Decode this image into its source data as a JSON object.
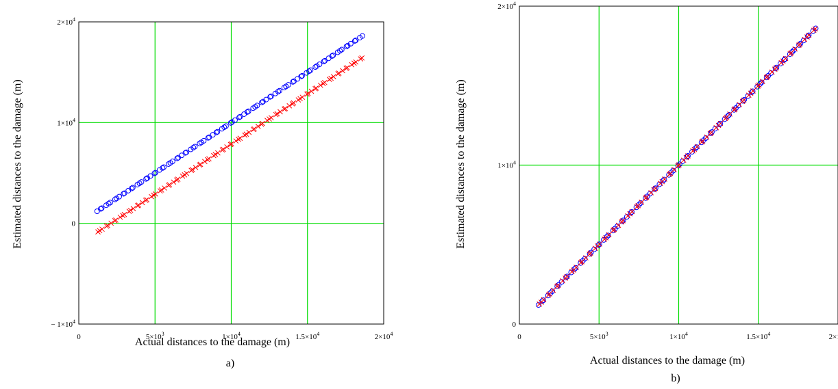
{
  "chart_data": [
    {
      "type": "scatter",
      "panel_label": "a)",
      "xlabel": "Actual distances to the damage (m)",
      "ylabel": "Estimated distances to the damage (m)",
      "xlim": [
        0,
        20000
      ],
      "ylim": [
        -10000,
        20000
      ],
      "xticks": [
        {
          "v": 0,
          "m": "0",
          "e": ""
        },
        {
          "v": 5000,
          "m": "5×10",
          "e": "3"
        },
        {
          "v": 10000,
          "m": "1×10",
          "e": "4"
        },
        {
          "v": 15000,
          "m": "1.5×10",
          "e": "4"
        },
        {
          "v": 20000,
          "m": "2×10",
          "e": "4"
        }
      ],
      "yticks": [
        {
          "v": -10000,
          "m": "− 1×10",
          "e": "4"
        },
        {
          "v": 0,
          "m": "0",
          "e": ""
        },
        {
          "v": 10000,
          "m": "1×10",
          "e": "4"
        },
        {
          "v": 20000,
          "m": "2×10",
          "e": "4"
        }
      ],
      "grid": true,
      "series": [
        {
          "marker": "circle",
          "color": "#0000ff",
          "x_start": 1200,
          "x_end": 18600,
          "count": 95,
          "slope": 1.0,
          "intercept": 0
        },
        {
          "marker": "x",
          "color": "#ff0000",
          "x_start": 1200,
          "x_end": 18600,
          "count": 95,
          "slope": 0.997,
          "intercept": -2100
        }
      ]
    },
    {
      "type": "scatter",
      "panel_label": "b)",
      "xlabel": "Actual distances to the damage (m)",
      "ylabel": "Estimated distances to the damage (m)",
      "xlim": [
        0,
        20000
      ],
      "ylim": [
        0,
        20000
      ],
      "xticks": [
        {
          "v": 0,
          "m": "0",
          "e": ""
        },
        {
          "v": 5000,
          "m": "5×10",
          "e": "3"
        },
        {
          "v": 10000,
          "m": "1×10",
          "e": "4"
        },
        {
          "v": 15000,
          "m": "1.5×10",
          "e": "4"
        },
        {
          "v": 20000,
          "m": "2×10",
          "e": "4"
        }
      ],
      "yticks": [
        {
          "v": 0,
          "m": "0",
          "e": ""
        },
        {
          "v": 10000,
          "m": "1×10",
          "e": "4"
        },
        {
          "v": 20000,
          "m": "2×10",
          "e": "4"
        }
      ],
      "grid": true,
      "series": [
        {
          "marker": "circle",
          "color": "#0000ff",
          "x_start": 1200,
          "x_end": 18600,
          "count": 95,
          "slope": 1.0,
          "intercept": 0
        },
        {
          "marker": "x",
          "color": "#ff0000",
          "x_start": 1200,
          "x_end": 18600,
          "count": 95,
          "slope": 1.0,
          "intercept": 0
        }
      ]
    }
  ]
}
